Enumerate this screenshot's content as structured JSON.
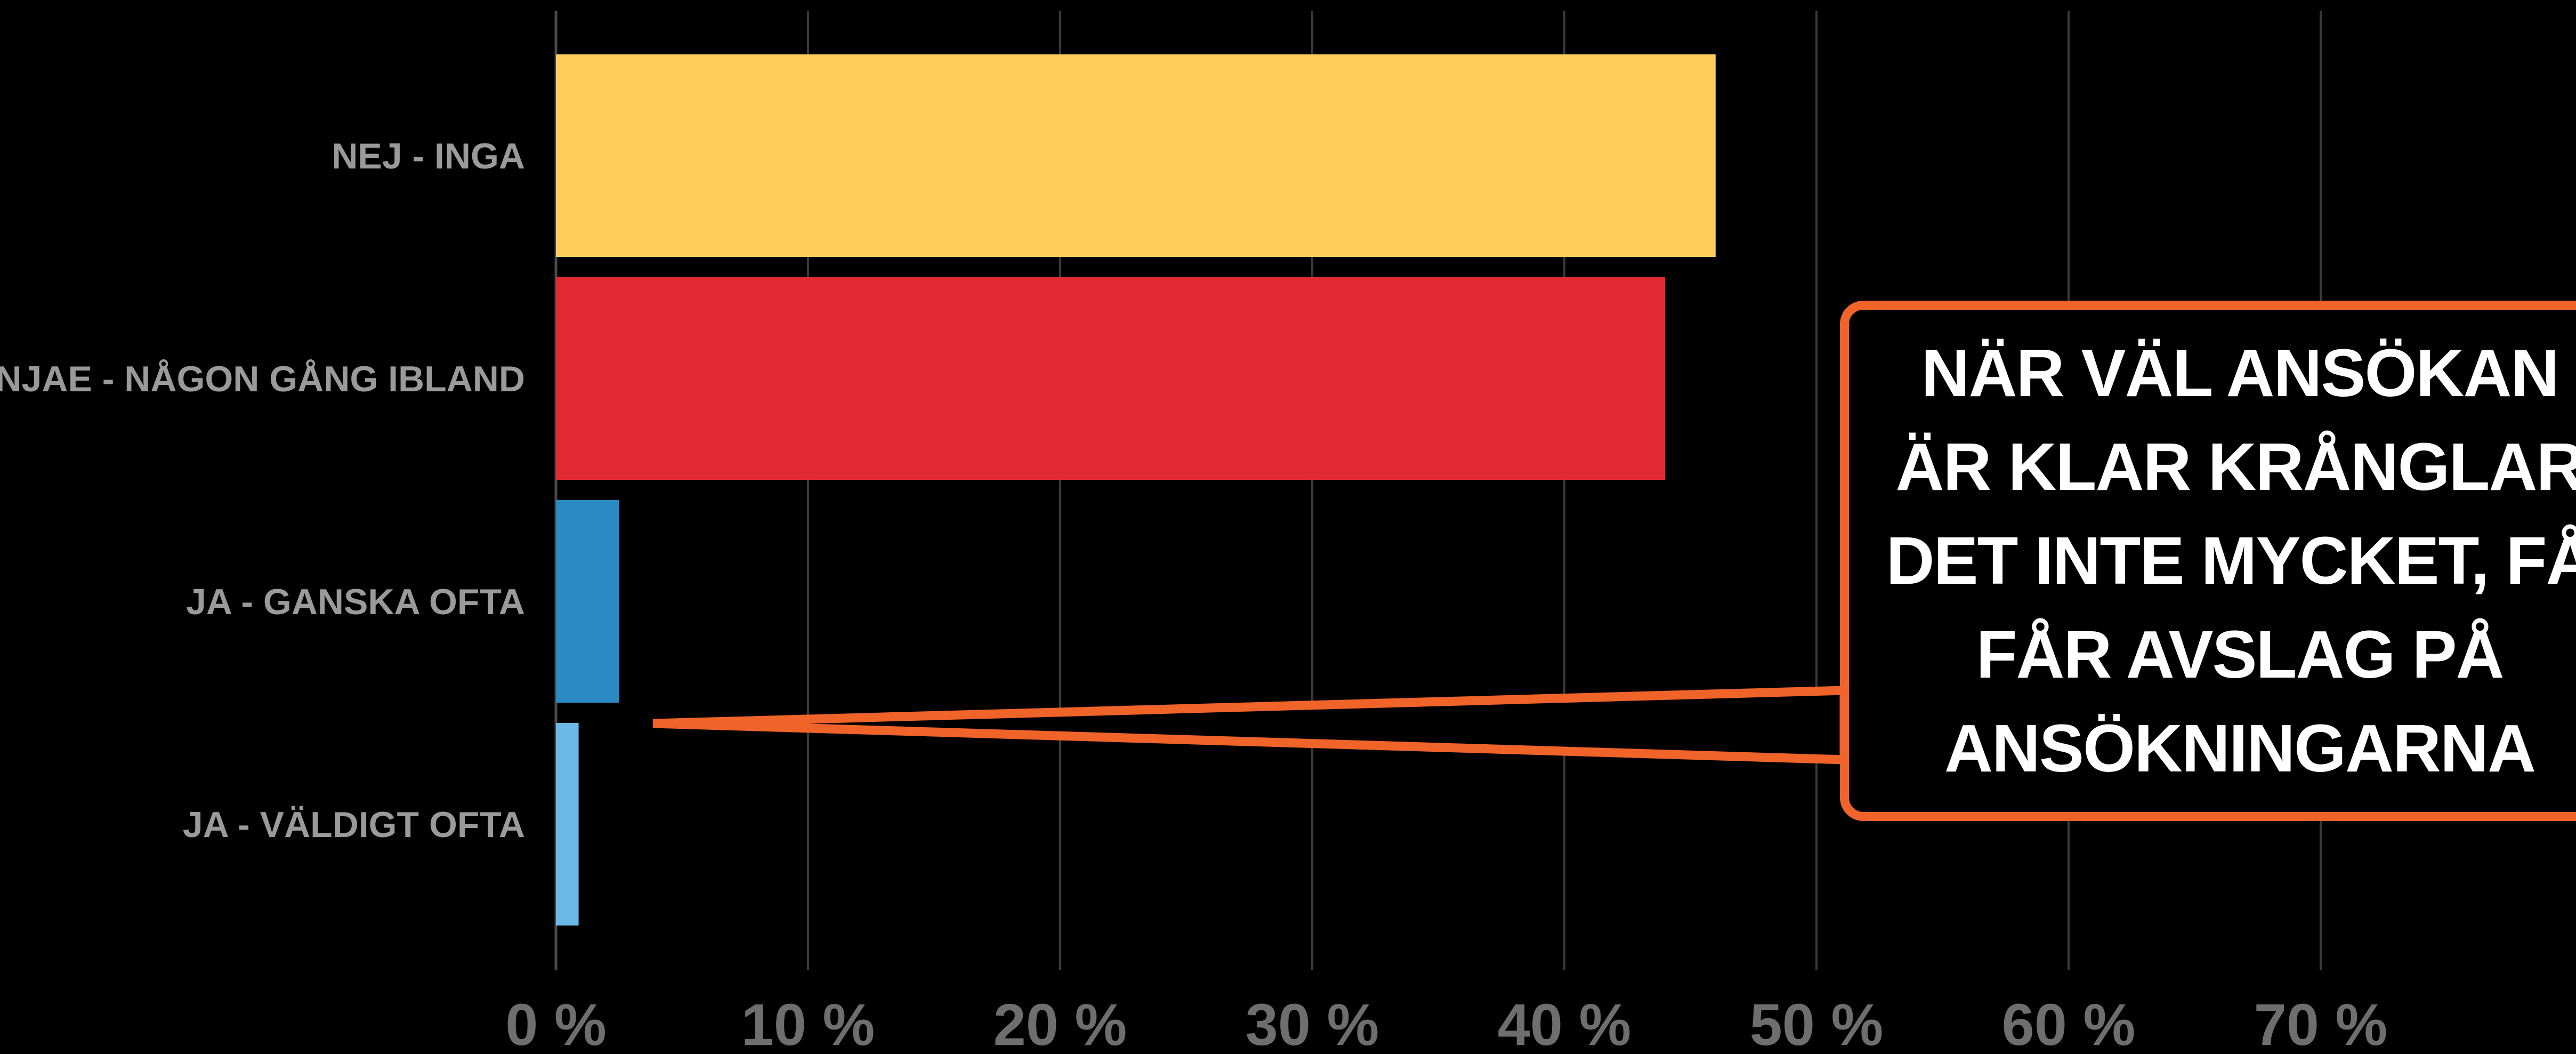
{
  "chart_data": {
    "type": "bar",
    "orientation": "horizontal",
    "categories": [
      "NEJ - INGA",
      "NJAE - NÅGON GÅNG IBLAND",
      "JA - GANSKA OFTA",
      "JA - VÄLDIGT OFTA"
    ],
    "values": [
      46,
      44,
      2.5,
      0.9
    ],
    "colors": [
      "#ffcd5b",
      "#e22a35",
      "#2a8ac4",
      "#6bb9e6"
    ],
    "xlim": [
      0,
      70
    ],
    "xticks": [
      0,
      10,
      20,
      30,
      40,
      50,
      60,
      70
    ],
    "xtick_labels": [
      "0 %",
      "10 %",
      "20 %",
      "30 %",
      "40 %",
      "50 %",
      "60 %",
      "70 %"
    ],
    "grid": true,
    "title": "",
    "xlabel": "",
    "ylabel": ""
  },
  "callout": {
    "text": "NÄR VÄL ANSÖKAN ÄR KLAR KRÅNGLAR DET INTE MYCKET, FÅ FÅR AVSLAG PÅ ANSÖKNINGARNA",
    "border_color": "#f0642a"
  }
}
